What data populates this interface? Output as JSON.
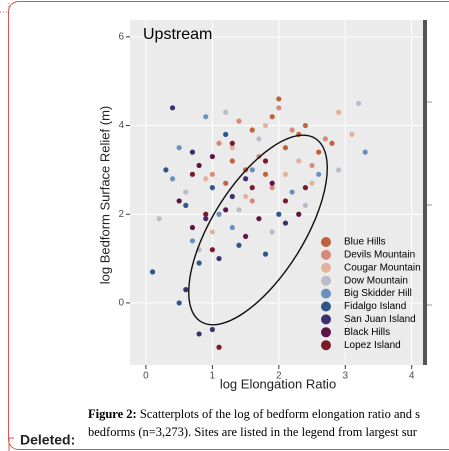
{
  "chart_data": {
    "type": "scatter",
    "panel_label": "Upstream",
    "x_label": "log Elongation Ratio",
    "y_label": "log Bedform Surface Relief (m)",
    "xlim": [
      -0.24,
      4.17
    ],
    "ylim": [
      -1.4,
      6.38
    ],
    "xticks": [
      0,
      1,
      2,
      3,
      4
    ],
    "yticks": [
      0,
      2,
      4,
      6
    ],
    "grid": true,
    "series": [
      {
        "name": "Blue Hills",
        "color": "#c0623b",
        "x": [
          1.3,
          1.6,
          1.9,
          2.1,
          2.3,
          2.6,
          1.8,
          2.0,
          1.5,
          2.4,
          2.8,
          1.2
        ],
        "y": [
          3.2,
          3.9,
          4.2,
          3.5,
          3.8,
          3.4,
          2.9,
          4.6,
          3.0,
          4.0,
          3.6,
          2.7
        ]
      },
      {
        "name": "Devils Mountain",
        "color": "#d68a7b",
        "x": [
          1.1,
          1.4,
          1.7,
          2.2,
          2.5,
          1.9,
          2.7,
          1.0,
          2.0,
          1.6
        ],
        "y": [
          3.6,
          4.1,
          3.3,
          3.9,
          3.1,
          2.6,
          3.7,
          2.9,
          4.4,
          2.3
        ]
      },
      {
        "name": "Cougar Mountain",
        "color": "#e3b29d",
        "x": [
          0.9,
          1.3,
          1.8,
          2.3,
          2.9,
          1.5,
          2.1,
          3.1,
          1.0,
          2.5
        ],
        "y": [
          2.8,
          3.5,
          4.0,
          3.2,
          4.3,
          2.4,
          2.9,
          3.8,
          1.6,
          2.7
        ]
      },
      {
        "name": "Dow Mountain",
        "color": "#b9bdc7",
        "x": [
          0.2,
          0.6,
          1.2,
          1.7,
          2.4,
          2.9,
          3.2,
          1.9,
          0.8,
          1.4
        ],
        "y": [
          1.9,
          2.5,
          4.3,
          3.7,
          2.2,
          3.0,
          4.5,
          1.6,
          1.2,
          2.1
        ]
      },
      {
        "name": "Big Skidder Hill",
        "color": "#6b90c0",
        "x": [
          0.5,
          0.9,
          1.1,
          1.6,
          2.2,
          3.3,
          0.7,
          1.3,
          2.6,
          0.4
        ],
        "y": [
          3.5,
          4.2,
          2.0,
          3.0,
          2.5,
          3.4,
          1.4,
          1.7,
          2.9,
          2.8
        ]
      },
      {
        "name": "Fidalgo Island",
        "color": "#2f5689",
        "x": [
          0.3,
          0.6,
          0.8,
          1.0,
          1.4,
          2.0,
          0.5,
          1.2,
          1.8,
          0.1
        ],
        "y": [
          3.0,
          2.2,
          0.9,
          2.6,
          1.3,
          2.0,
          0.0,
          3.8,
          1.1,
          0.7
        ]
      },
      {
        "name": "San Juan Island",
        "color": "#3d306c",
        "x": [
          0.4,
          0.7,
          0.9,
          1.1,
          1.3,
          0.6,
          1.0,
          1.5,
          0.8,
          2.1
        ],
        "y": [
          4.4,
          3.4,
          1.9,
          1.0,
          2.4,
          0.3,
          -0.6,
          2.8,
          -0.7,
          1.8
        ]
      },
      {
        "name": "Black Hills",
        "color": "#5e1349",
        "x": [
          0.5,
          0.8,
          1.2,
          1.5,
          1.9,
          1.0,
          2.3,
          1.7,
          0.7
        ],
        "y": [
          2.3,
          3.1,
          2.1,
          1.5,
          2.7,
          3.3,
          2.0,
          1.9,
          1.7
        ]
      },
      {
        "name": "Lopez Island",
        "color": "#7a1b2b",
        "x": [
          0.7,
          1.0,
          1.3,
          1.6,
          2.1,
          1.1,
          1.8,
          0.9,
          2.4
        ],
        "y": [
          2.9,
          1.2,
          3.6,
          2.6,
          2.3,
          -1.0,
          3.2,
          2.0,
          2.6
        ]
      }
    ]
  },
  "caption": {
    "figure_label": "Figure 2:",
    "lines": [
      "Scatterplots of the log of bedform elongation ratio and s",
      "bedforms (n=3,273). Sites are listed in the legend from largest sur"
    ]
  },
  "deleted_label": "Deleted:"
}
